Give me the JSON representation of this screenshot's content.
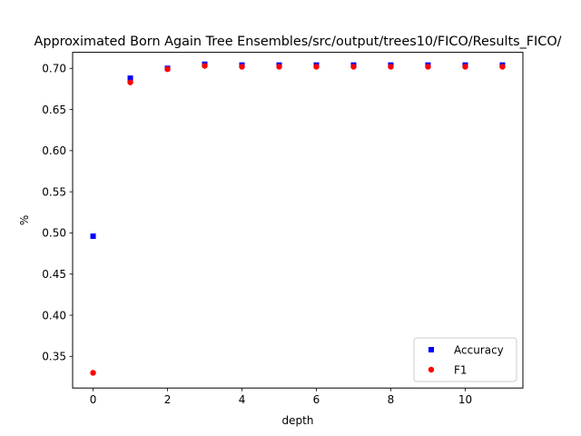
{
  "chart_data": {
    "type": "scatter",
    "title": "Approximated Born Again Tree Ensembles/src/output/trees10/FICO/Results_FICO/",
    "xlabel": "depth",
    "ylabel": "%",
    "xlim": [
      -0.55,
      11.55
    ],
    "ylim": [
      0.3115,
      0.7195
    ],
    "xticks": [
      "0",
      "2",
      "4",
      "6",
      "8",
      "10"
    ],
    "xtick_values": [
      0,
      2,
      4,
      6,
      8,
      10
    ],
    "yticks": [
      "0.35",
      "0.40",
      "0.45",
      "0.50",
      "0.55",
      "0.60",
      "0.65",
      "0.70"
    ],
    "ytick_values": [
      0.35,
      0.4,
      0.45,
      0.5,
      0.55,
      0.6,
      0.65,
      0.7
    ],
    "legend_position": "lower-right",
    "grid": false,
    "x": [
      0,
      1,
      2,
      3,
      4,
      5,
      6,
      7,
      8,
      9,
      10,
      11
    ],
    "series": [
      {
        "name": "Accuracy",
        "marker": "square",
        "color": "#0000ff",
        "values": [
          0.496,
          0.688,
          0.7,
          0.705,
          0.704,
          0.704,
          0.704,
          0.704,
          0.704,
          0.704,
          0.704,
          0.704
        ]
      },
      {
        "name": "F1",
        "marker": "circle",
        "color": "#ff0000",
        "values": [
          0.33,
          0.683,
          0.699,
          0.703,
          0.702,
          0.702,
          0.702,
          0.702,
          0.702,
          0.702,
          0.702,
          0.702
        ]
      }
    ]
  }
}
